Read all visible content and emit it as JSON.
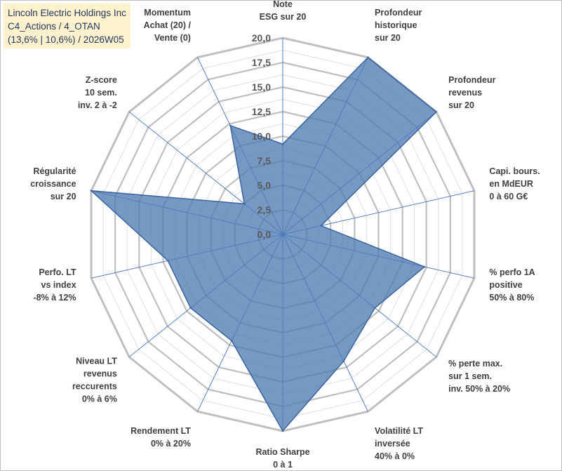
{
  "chart_data": {
    "type": "radar",
    "title_lines": [
      "Lincoln Electric Holdings Inc",
      "C4_Actions / 4_OTAN",
      "(13,6% | 10,6%) / 2026W05"
    ],
    "rmin": 0,
    "rmax": 20,
    "ticks": [
      "0,0",
      "2,5",
      "5,0",
      "7,5",
      "10,0",
      "12,5",
      "15,0",
      "17,5",
      "20,0"
    ],
    "grid": "on",
    "colors": {
      "series_fill": "#4f7cb3",
      "series_stroke": "#3a64a0",
      "major_grid": "#bfbfbf",
      "minor_grid": "#e3e3e3",
      "spokes": "#4472c4"
    },
    "categories": [
      {
        "lines": [
          "Note",
          "ESG sur 20"
        ]
      },
      {
        "lines": [
          "Profondeur",
          "historique",
          "sur 20"
        ]
      },
      {
        "lines": [
          "Profondeur",
          "revenus",
          "sur 20"
        ]
      },
      {
        "lines": [
          "Capi. bours.",
          "en MdEUR",
          "0 à 60 G€"
        ]
      },
      {
        "lines": [
          "% perfo 1A",
          "positive",
          "50% à 80%"
        ]
      },
      {
        "lines": [
          "% perte max.",
          "sur 1 sem.",
          "inv. 50% à 20%"
        ]
      },
      {
        "lines": [
          "Volatilité LT",
          "inversée",
          "40% à 0%"
        ]
      },
      {
        "lines": [
          "Ratio Sharpe",
          "0 à 1"
        ]
      },
      {
        "lines": [
          "Rendement LT",
          "0% à 20%"
        ]
      },
      {
        "lines": [
          "Niveau LT",
          "revenus",
          "reccurents",
          "0% à 6%"
        ]
      },
      {
        "lines": [
          "Perfo. LT",
          "vs index",
          "-8% à 12%"
        ]
      },
      {
        "lines": [
          "Régularité",
          "croissance",
          "sur 20"
        ]
      },
      {
        "lines": [
          "Z-score",
          "10 sem.",
          "inv. 2 à -2"
        ]
      },
      {
        "lines": [
          "Momentum",
          "Achat (20) /",
          "Vente (0)"
        ]
      }
    ],
    "series": [
      {
        "name": "Lincoln Electric Holdings Inc",
        "values": [
          9.2,
          20.0,
          20.0,
          4.0,
          14.8,
          12.0,
          14.3,
          20.0,
          12.0,
          12.0,
          12.0,
          20.0,
          5.0,
          12.3
        ]
      }
    ]
  }
}
